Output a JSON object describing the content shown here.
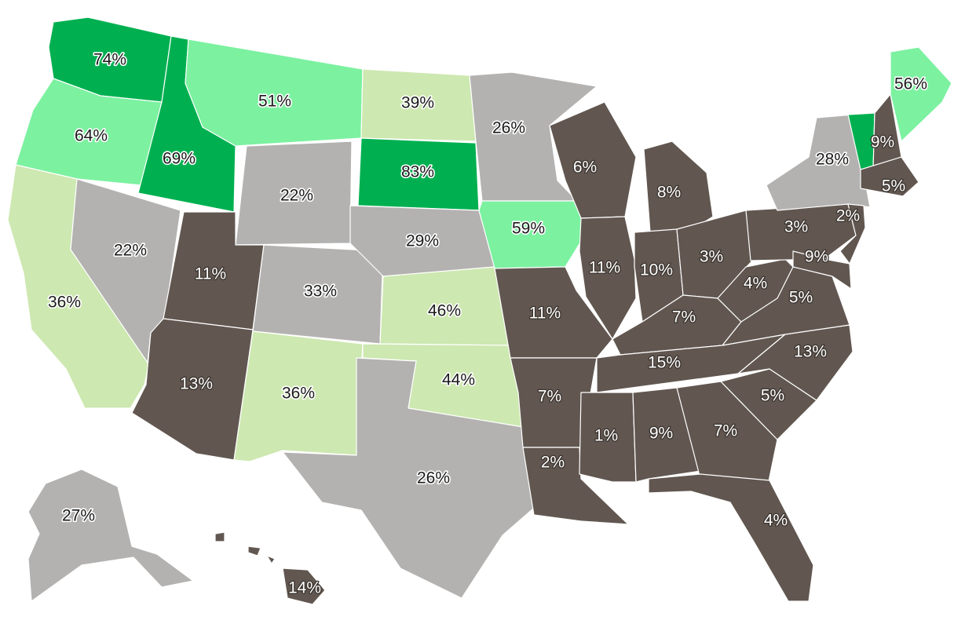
{
  "map": {
    "colors": {
      "band_1": "#00b050",
      "band_2": "#7cf1a0",
      "band_3": "#cde8b0",
      "band_4": "#b3b2b1",
      "band_5": "#615750"
    },
    "states": [
      {
        "id": "WA",
        "value": "74%",
        "band": 1
      },
      {
        "id": "OR",
        "value": "64%",
        "band": 2
      },
      {
        "id": "CA",
        "value": "36%",
        "band": 3
      },
      {
        "id": "ID",
        "value": "69%",
        "band": 1
      },
      {
        "id": "NV",
        "value": "22%",
        "band": 4
      },
      {
        "id": "MT",
        "value": "51%",
        "band": 2
      },
      {
        "id": "WY",
        "value": "22%",
        "band": 4
      },
      {
        "id": "UT",
        "value": "11%",
        "band": 5
      },
      {
        "id": "AZ",
        "value": "13%",
        "band": 5
      },
      {
        "id": "CO",
        "value": "33%",
        "band": 4
      },
      {
        "id": "NM",
        "value": "36%",
        "band": 3
      },
      {
        "id": "ND",
        "value": "39%",
        "band": 3
      },
      {
        "id": "SD",
        "value": "83%",
        "band": 1
      },
      {
        "id": "NE",
        "value": "29%",
        "band": 4
      },
      {
        "id": "KS",
        "value": "46%",
        "band": 3
      },
      {
        "id": "OK",
        "value": "44%",
        "band": 3
      },
      {
        "id": "TX",
        "value": "26%",
        "band": 4
      },
      {
        "id": "MN",
        "value": "26%",
        "band": 4
      },
      {
        "id": "IA",
        "value": "59%",
        "band": 2
      },
      {
        "id": "MO",
        "value": "11%",
        "band": 5
      },
      {
        "id": "AR",
        "value": "7%",
        "band": 5
      },
      {
        "id": "LA",
        "value": "2%",
        "band": 5
      },
      {
        "id": "WI",
        "value": "6%",
        "band": 5
      },
      {
        "id": "IL",
        "value": "11%",
        "band": 5
      },
      {
        "id": "MI",
        "value": "8%",
        "band": 5
      },
      {
        "id": "IN",
        "value": "10%",
        "band": 5
      },
      {
        "id": "OH",
        "value": "3%",
        "band": 5
      },
      {
        "id": "KY",
        "value": "7%",
        "band": 5
      },
      {
        "id": "TN",
        "value": "15%",
        "band": 5
      },
      {
        "id": "MS",
        "value": "1%",
        "band": 5
      },
      {
        "id": "AL",
        "value": "9%",
        "band": 5
      },
      {
        "id": "GA",
        "value": "7%",
        "band": 5
      },
      {
        "id": "FL",
        "value": "4%",
        "band": 5
      },
      {
        "id": "SC",
        "value": "5%",
        "band": 5
      },
      {
        "id": "NC",
        "value": "13%",
        "band": 5
      },
      {
        "id": "VA",
        "value": "5%",
        "band": 5
      },
      {
        "id": "WV",
        "value": "4%",
        "band": 5
      },
      {
        "id": "PA",
        "value": "3%",
        "band": 5
      },
      {
        "id": "NY",
        "value": "28%",
        "band": 4
      },
      {
        "id": "VT",
        "value": "",
        "band": 1
      },
      {
        "id": "NH",
        "value": "9%",
        "band": 5
      },
      {
        "id": "ME",
        "value": "56%",
        "band": 2
      },
      {
        "id": "MA",
        "value": "5%",
        "band": 5
      },
      {
        "id": "NJ",
        "value": "2%",
        "band": 5
      },
      {
        "id": "MD",
        "value": "9%",
        "band": 5
      },
      {
        "id": "AK",
        "value": "27%",
        "band": 4
      },
      {
        "id": "HI",
        "value": "14%",
        "band": 5
      }
    ]
  }
}
